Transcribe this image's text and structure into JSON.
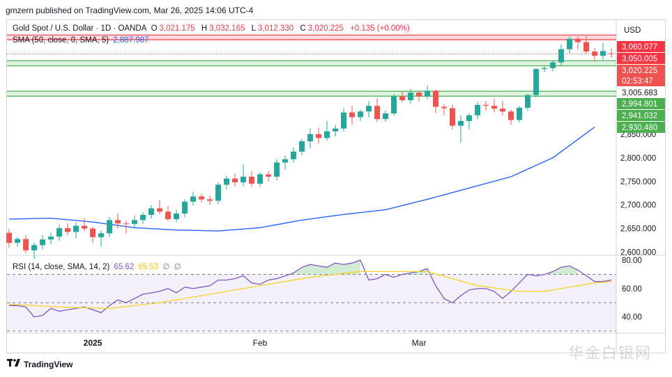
{
  "publisher": "gmzern published on TradingView.com, Mar 26, 2025 14:06 UTC-4",
  "footer": {
    "brand": "TradingView"
  },
  "currency": "USD",
  "colors": {
    "up": "#26a69a",
    "down": "#ef5350",
    "sma": "#2962ff",
    "rsi": "#7e57c2",
    "rsi_ma": "#f5d327",
    "resistance": "#f23645",
    "support": "#4caf50"
  },
  "legend": {
    "symbol": "Gold Spot / U.S. Dollar · 1D · OANDA",
    "o_label": "O",
    "o": "3,021.175",
    "h_label": "H",
    "h": "3,032.165",
    "l_label": "L",
    "l": "3,012.330",
    "c_label": "C",
    "c": "3,020.225",
    "change": "+0.135 (+0.00%)",
    "sma_label": "SMA (50, close, 0, SMA, 5)",
    "sma_value": "2,887.987"
  },
  "rsi_legend": {
    "label": "RSI (14, close, SMA, 14, 2)",
    "rsi": "65.62",
    "ma": "65.53",
    "extra1": "∅",
    "extra2": "∅"
  },
  "price_badges": [
    {
      "text": "3,060.077",
      "bg": "#f23645",
      "fg": "#ffffff"
    },
    {
      "text": "3,050.005",
      "bg": "#f23645",
      "fg": "#ffffff"
    },
    {
      "text": "3,020.225",
      "bg": "#ef5350",
      "fg": "#ffffff"
    },
    {
      "text": "02:53:47",
      "bg": "#ef5350",
      "fg": "#ffffff"
    },
    {
      "text": "3,005.683",
      "bg": "#ffffff",
      "fg": "#131722"
    },
    {
      "text": "2,994.801",
      "bg": "#4caf50",
      "fg": "#ffffff"
    },
    {
      "text": "2,941.032",
      "bg": "#4caf50",
      "fg": "#ffffff"
    },
    {
      "text": "2,930.480",
      "bg": "#4caf50",
      "fg": "#ffffff"
    }
  ],
  "watermark": "华金白银网",
  "chart_data": [
    {
      "type": "candlestick",
      "title": "Gold Spot / U.S. Dollar · 1D · OANDA",
      "x_ticks": [
        "2025",
        "Feb",
        "Mar"
      ],
      "y_ticks": [
        "2,850.000",
        "2,800.000",
        "2,750.000",
        "2,700.000",
        "2,650.000",
        "2,600.000"
      ],
      "ylim": [
        2595,
        3090
      ],
      "grid": false,
      "candles": [
        [
          2641,
          2650,
          2610,
          2620
        ],
        [
          2620,
          2632,
          2612,
          2628
        ],
        [
          2628,
          2636,
          2598,
          2604
        ],
        [
          2604,
          2620,
          2585,
          2615
        ],
        [
          2615,
          2636,
          2606,
          2627
        ],
        [
          2627,
          2641,
          2617,
          2633
        ],
        [
          2633,
          2658,
          2624,
          2651
        ],
        [
          2651,
          2662,
          2636,
          2643
        ],
        [
          2643,
          2663,
          2630,
          2656
        ],
        [
          2656,
          2672,
          2645,
          2650
        ],
        [
          2650,
          2654,
          2620,
          2632
        ],
        [
          2632,
          2646,
          2612,
          2640
        ],
        [
          2640,
          2675,
          2632,
          2668
        ],
        [
          2668,
          2682,
          2650,
          2661
        ],
        [
          2661,
          2666,
          2640,
          2660
        ],
        [
          2660,
          2678,
          2650,
          2668
        ],
        [
          2668,
          2685,
          2660,
          2679
        ],
        [
          2679,
          2700,
          2671,
          2693
        ],
        [
          2693,
          2710,
          2681,
          2686
        ],
        [
          2686,
          2698,
          2666,
          2670
        ],
        [
          2670,
          2690,
          2664,
          2682
        ],
        [
          2682,
          2712,
          2674,
          2707
        ],
        [
          2707,
          2728,
          2699,
          2718
        ],
        [
          2718,
          2724,
          2706,
          2712
        ],
        [
          2712,
          2720,
          2700,
          2709
        ],
        [
          2709,
          2748,
          2702,
          2743
        ],
        [
          2743,
          2762,
          2733,
          2756
        ],
        [
          2756,
          2766,
          2740,
          2748
        ],
        [
          2748,
          2786,
          2740,
          2760
        ],
        [
          2760,
          2772,
          2738,
          2745
        ],
        [
          2745,
          2770,
          2738,
          2765
        ],
        [
          2765,
          2772,
          2750,
          2760
        ],
        [
          2760,
          2797,
          2752,
          2790
        ],
        [
          2790,
          2805,
          2775,
          2797
        ],
        [
          2797,
          2822,
          2790,
          2813
        ],
        [
          2813,
          2840,
          2806,
          2835
        ],
        [
          2835,
          2862,
          2820,
          2850
        ],
        [
          2850,
          2864,
          2830,
          2842
        ],
        [
          2842,
          2878,
          2836,
          2856
        ],
        [
          2856,
          2870,
          2845,
          2862
        ],
        [
          2862,
          2905,
          2856,
          2896
        ],
        [
          2896,
          2910,
          2870,
          2886
        ],
        [
          2886,
          2902,
          2878,
          2898
        ],
        [
          2898,
          2920,
          2886,
          2910
        ],
        [
          2910,
          2925,
          2876,
          2882
        ],
        [
          2882,
          2900,
          2876,
          2894
        ],
        [
          2894,
          2935,
          2889,
          2930
        ],
        [
          2930,
          2940,
          2918,
          2922
        ],
        [
          2922,
          2946,
          2915,
          2938
        ],
        [
          2938,
          2942,
          2920,
          2930
        ],
        [
          2930,
          2953,
          2924,
          2942
        ],
        [
          2942,
          2945,
          2895,
          2908
        ],
        [
          2908,
          2914,
          2890,
          2905
        ],
        [
          2905,
          2912,
          2860,
          2868
        ],
        [
          2868,
          2890,
          2832,
          2878
        ],
        [
          2878,
          2894,
          2860,
          2890
        ],
        [
          2890,
          2918,
          2882,
          2912
        ],
        [
          2912,
          2920,
          2900,
          2910
        ],
        [
          2910,
          2925,
          2896,
          2904
        ],
        [
          2904,
          2920,
          2890,
          2898
        ],
        [
          2898,
          2902,
          2870,
          2880
        ],
        [
          2880,
          2910,
          2875,
          2906
        ],
        [
          2906,
          2935,
          2900,
          2933
        ],
        [
          2933,
          2990,
          2928,
          2988
        ],
        [
          2988,
          2996,
          2981,
          2990
        ],
        [
          2990,
          3006,
          2983,
          3002
        ],
        [
          3002,
          3040,
          2995,
          3030
        ],
        [
          3030,
          3057,
          3020,
          3052
        ],
        [
          3052,
          3057,
          3030,
          3045
        ],
        [
          3045,
          3058,
          3020,
          3025
        ],
        [
          3025,
          3033,
          3004,
          3016
        ],
        [
          3016,
          3043,
          3008,
          3026
        ],
        [
          3021,
          3032,
          3012,
          3020
        ]
      ],
      "series": [
        {
          "name": "SMA (50, close, 0, SMA, 5)",
          "points": [
            [
              0,
              2670
            ],
            [
              5,
              2672
            ],
            [
              10,
              2664
            ],
            [
              15,
              2652
            ],
            [
              20,
              2647
            ],
            [
              25,
              2645
            ],
            [
              30,
              2652
            ],
            [
              35,
              2668
            ],
            [
              40,
              2680
            ],
            [
              45,
              2690
            ],
            [
              50,
              2712
            ],
            [
              55,
              2736
            ],
            [
              60,
              2760
            ],
            [
              65,
              2800
            ],
            [
              70,
              2865
            ]
          ]
        }
      ],
      "levels": [
        {
          "label": "resistance",
          "from": 3050.005,
          "to": 3060.077
        },
        {
          "label": "support",
          "from": 2994.801,
          "to": 3005.683
        },
        {
          "label": "support",
          "from": 2930.48,
          "to": 2941.032
        }
      ],
      "last_price": 3020.225
    },
    {
      "type": "line",
      "title": "RSI (14, close, SMA, 14, 2)",
      "y_ticks": [
        "80.00",
        "60.00",
        "40.00"
      ],
      "ylim": [
        29,
        83
      ],
      "bands": [
        30,
        50,
        70
      ],
      "series": [
        {
          "name": "RSI",
          "points": [
            [
              0,
              48
            ],
            [
              1,
              48
            ],
            [
              2,
              47
            ],
            [
              3,
              40
            ],
            [
              4,
              41
            ],
            [
              5,
              46
            ],
            [
              6,
              44
            ],
            [
              7,
              45
            ],
            [
              8,
              46
            ],
            [
              9,
              47
            ],
            [
              10,
              45
            ],
            [
              11,
              43
            ],
            [
              12,
              48
            ],
            [
              13,
              52
            ],
            [
              14,
              50
            ],
            [
              15,
              53
            ],
            [
              16,
              56
            ],
            [
              17,
              57
            ],
            [
              18,
              58
            ],
            [
              19,
              60
            ],
            [
              20,
              57
            ],
            [
              21,
              61
            ],
            [
              22,
              60
            ],
            [
              23,
              61
            ],
            [
              24,
              62
            ],
            [
              25,
              66
            ],
            [
              26,
              66
            ],
            [
              27,
              67
            ],
            [
              28,
              69
            ],
            [
              29,
              64
            ],
            [
              30,
              63
            ],
            [
              31,
              66
            ],
            [
              32,
              67
            ],
            [
              33,
              69
            ],
            [
              34,
              71
            ],
            [
              35,
              75
            ],
            [
              36,
              77
            ],
            [
              37,
              76
            ],
            [
              38,
              75
            ],
            [
              39,
              78
            ],
            [
              40,
              77
            ],
            [
              41,
              78
            ],
            [
              42,
              80
            ],
            [
              43,
              66
            ],
            [
              44,
              67
            ],
            [
              45,
              70
            ],
            [
              46,
              68
            ],
            [
              47,
              70
            ],
            [
              48,
              71
            ],
            [
              49,
              72
            ],
            [
              50,
              74
            ],
            [
              51,
              62
            ],
            [
              52,
              53
            ],
            [
              53,
              50
            ],
            [
              54,
              55
            ],
            [
              55,
              59
            ],
            [
              56,
              60
            ],
            [
              57,
              60
            ],
            [
              58,
              58
            ],
            [
              59,
              53
            ],
            [
              60,
              58
            ],
            [
              61,
              64
            ],
            [
              62,
              70
            ],
            [
              63,
              69
            ],
            [
              64,
              70
            ],
            [
              65,
              72
            ],
            [
              66,
              75
            ],
            [
              67,
              76
            ],
            [
              68,
              73
            ],
            [
              69,
              69
            ],
            [
              70,
              65
            ],
            [
              71,
              65
            ],
            [
              72,
              66
            ]
          ]
        },
        {
          "name": "RSI-based MA",
          "points": [
            [
              0,
              49
            ],
            [
              6,
              47
            ],
            [
              12,
              46
            ],
            [
              18,
              50
            ],
            [
              24,
              56
            ],
            [
              30,
              62
            ],
            [
              36,
              68
            ],
            [
              42,
              72
            ],
            [
              48,
              72
            ],
            [
              50,
              72
            ],
            [
              56,
              62
            ],
            [
              61,
              58
            ],
            [
              64,
              58
            ],
            [
              66,
              60
            ],
            [
              70,
              64
            ],
            [
              72,
              65
            ]
          ]
        }
      ]
    }
  ]
}
